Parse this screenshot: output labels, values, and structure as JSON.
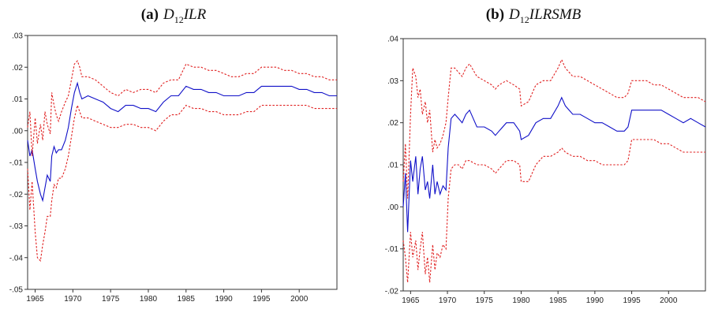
{
  "chart_data": [
    {
      "type": "line",
      "caption": {
        "tag": "(a)",
        "symbol": "D",
        "subscript": "12",
        "suffix": "ILR"
      },
      "ylim": [
        -0.05,
        0.03
      ],
      "yticks": [
        0.03,
        0.02,
        0.01,
        0.0,
        -0.01,
        -0.02,
        -0.03,
        -0.04,
        -0.05
      ],
      "ytick_labels": [
        ".03",
        ".02",
        ".01",
        ".00",
        "-.01",
        "-.02",
        "-.03",
        "-.04",
        "-.05"
      ],
      "xlim": [
        1964,
        2005
      ],
      "xticks": [
        1965,
        1970,
        1975,
        1980,
        1985,
        1990,
        1995,
        2000
      ],
      "xtick_labels": [
        "1965",
        "1970",
        "1975",
        "1980",
        "1985",
        "1990",
        "1995",
        "2000"
      ],
      "grid": false,
      "series": [
        {
          "color": "#1010c8",
          "style": "solid",
          "x": [
            1964.0,
            1964.3,
            1964.6,
            1965.0,
            1965.3,
            1965.7,
            1966.0,
            1966.3,
            1966.6,
            1967.0,
            1967.2,
            1967.5,
            1967.8,
            1968.1,
            1968.5,
            1969.0,
            1969.4,
            1969.8,
            1970.2,
            1970.6,
            1970.9,
            1971.2,
            1972.0,
            1973.0,
            1974.0,
            1975.0,
            1976.0,
            1977.0,
            1978.0,
            1979.0,
            1980.0,
            1981.0,
            1982.0,
            1983.0,
            1984.0,
            1985.0,
            1986.0,
            1987.0,
            1988.0,
            1989.0,
            1990.0,
            1991.0,
            1992.0,
            1993.0,
            1994.0,
            1995.0,
            1996.0,
            1997.0,
            1998.0,
            1999.0,
            2000.0,
            2001.0,
            2002.0,
            2003.0,
            2004.0,
            2005.0
          ],
          "y": [
            -0.003,
            -0.008,
            -0.006,
            -0.012,
            -0.016,
            -0.02,
            -0.022,
            -0.018,
            -0.014,
            -0.016,
            -0.008,
            -0.005,
            -0.007,
            -0.006,
            -0.006,
            -0.003,
            0.001,
            0.007,
            0.012,
            0.015,
            0.012,
            0.01,
            0.011,
            0.01,
            0.009,
            0.007,
            0.006,
            0.008,
            0.008,
            0.007,
            0.007,
            0.006,
            0.009,
            0.011,
            0.011,
            0.014,
            0.013,
            0.013,
            0.012,
            0.012,
            0.011,
            0.011,
            0.011,
            0.012,
            0.012,
            0.014,
            0.014,
            0.014,
            0.014,
            0.014,
            0.013,
            0.013,
            0.012,
            0.012,
            0.011,
            0.011
          ]
        },
        {
          "color": "#e02020",
          "style": "dashed",
          "x": [
            1964.0,
            1964.3,
            1964.6,
            1965.0,
            1965.3,
            1965.7,
            1966.0,
            1966.3,
            1966.6,
            1967.0,
            1967.2,
            1967.5,
            1967.8,
            1968.1,
            1968.5,
            1969.0,
            1969.4,
            1969.8,
            1970.2,
            1970.6,
            1970.9,
            1971.2,
            1972.0,
            1973.0,
            1974.0,
            1975.0,
            1976.0,
            1977.0,
            1978.0,
            1979.0,
            1980.0,
            1981.0,
            1982.0,
            1983.0,
            1984.0,
            1985.0,
            1986.0,
            1987.0,
            1988.0,
            1989.0,
            1990.0,
            1991.0,
            1992.0,
            1993.0,
            1994.0,
            1995.0,
            1996.0,
            1997.0,
            1998.0,
            1999.0,
            2000.0,
            2001.0,
            2002.0,
            2003.0,
            2004.0,
            2005.0
          ],
          "y": [
            0.001,
            0.006,
            -0.008,
            0.004,
            -0.004,
            0.002,
            -0.003,
            0.006,
            0.002,
            -0.001,
            0.012,
            0.008,
            0.005,
            0.003,
            0.006,
            0.009,
            0.011,
            0.016,
            0.021,
            0.022,
            0.02,
            0.017,
            0.017,
            0.016,
            0.014,
            0.012,
            0.011,
            0.013,
            0.012,
            0.013,
            0.013,
            0.012,
            0.015,
            0.016,
            0.016,
            0.021,
            0.02,
            0.02,
            0.019,
            0.019,
            0.018,
            0.017,
            0.017,
            0.018,
            0.018,
            0.02,
            0.02,
            0.02,
            0.019,
            0.019,
            0.018,
            0.018,
            0.017,
            0.017,
            0.016,
            0.016
          ]
        },
        {
          "color": "#e02020",
          "style": "dashed",
          "x": [
            1964.0,
            1964.3,
            1964.6,
            1965.0,
            1965.3,
            1965.7,
            1966.0,
            1966.3,
            1966.6,
            1967.0,
            1967.2,
            1967.5,
            1967.8,
            1968.1,
            1968.5,
            1969.0,
            1969.4,
            1969.8,
            1970.2,
            1970.6,
            1970.9,
            1971.2,
            1972.0,
            1973.0,
            1974.0,
            1975.0,
            1976.0,
            1977.0,
            1978.0,
            1979.0,
            1980.0,
            1981.0,
            1982.0,
            1983.0,
            1984.0,
            1985.0,
            1986.0,
            1987.0,
            1988.0,
            1989.0,
            1990.0,
            1991.0,
            1992.0,
            1993.0,
            1994.0,
            1995.0,
            1996.0,
            1997.0,
            1998.0,
            1999.0,
            2000.0,
            2001.0,
            2002.0,
            2003.0,
            2004.0,
            2005.0
          ],
          "y": [
            -0.012,
            -0.025,
            -0.016,
            -0.032,
            -0.04,
            -0.041,
            -0.036,
            -0.032,
            -0.027,
            -0.027,
            -0.022,
            -0.017,
            -0.018,
            -0.015,
            -0.015,
            -0.012,
            -0.008,
            -0.002,
            0.004,
            0.008,
            0.006,
            0.004,
            0.004,
            0.003,
            0.002,
            0.001,
            0.001,
            0.002,
            0.002,
            0.001,
            0.001,
            0.0,
            0.003,
            0.005,
            0.005,
            0.008,
            0.007,
            0.007,
            0.006,
            0.006,
            0.005,
            0.005,
            0.005,
            0.006,
            0.006,
            0.008,
            0.008,
            0.008,
            0.008,
            0.008,
            0.008,
            0.008,
            0.007,
            0.007,
            0.007,
            0.007
          ]
        }
      ]
    },
    {
      "type": "line",
      "caption": {
        "tag": "(b)",
        "symbol": "D",
        "subscript": "12",
        "suffix": "ILRSMB"
      },
      "ylim": [
        -0.02,
        0.04
      ],
      "yticks": [
        0.04,
        0.03,
        0.02,
        0.01,
        0.0,
        -0.01,
        -0.02
      ],
      "ytick_labels": [
        ".04",
        ".03",
        ".02",
        ".01",
        ".00",
        "-.01",
        "-.02"
      ],
      "xlim": [
        1964,
        2005
      ],
      "xticks": [
        1965,
        1970,
        1975,
        1980,
        1985,
        1990,
        1995,
        2000
      ],
      "xtick_labels": [
        "1965",
        "1970",
        "1975",
        "1980",
        "1985",
        "1990",
        "1995",
        "2000"
      ],
      "grid": false,
      "series": [
        {
          "color": "#1010c8",
          "style": "solid",
          "x": [
            1964.0,
            1964.3,
            1964.6,
            1965.0,
            1965.3,
            1965.7,
            1966.0,
            1966.3,
            1966.6,
            1967.0,
            1967.3,
            1967.6,
            1968.0,
            1968.3,
            1968.6,
            1969.0,
            1969.4,
            1969.8,
            1970.1,
            1970.5,
            1971.0,
            1971.5,
            1972.0,
            1972.5,
            1973.0,
            1974.0,
            1975.0,
            1976.0,
            1976.5,
            1977.0,
            1978.0,
            1979.0,
            1979.8,
            1980.0,
            1981.0,
            1982.0,
            1983.0,
            1984.0,
            1985.0,
            1985.5,
            1986.0,
            1987.0,
            1988.0,
            1989.0,
            1990.0,
            1991.0,
            1992.0,
            1993.0,
            1994.0,
            1994.5,
            1995.0,
            1996.0,
            1997.0,
            1998.0,
            1999.0,
            2000.0,
            2001.0,
            2002.0,
            2003.0,
            2004.0,
            2005.0
          ],
          "y": [
            0.0,
            0.008,
            -0.006,
            0.011,
            0.006,
            0.012,
            0.003,
            0.009,
            0.012,
            0.004,
            0.006,
            0.002,
            0.01,
            0.003,
            0.006,
            0.003,
            0.005,
            0.004,
            0.014,
            0.021,
            0.022,
            0.021,
            0.02,
            0.022,
            0.023,
            0.019,
            0.019,
            0.018,
            0.017,
            0.018,
            0.02,
            0.02,
            0.018,
            0.016,
            0.017,
            0.02,
            0.021,
            0.021,
            0.024,
            0.026,
            0.024,
            0.022,
            0.022,
            0.021,
            0.02,
            0.02,
            0.019,
            0.018,
            0.018,
            0.019,
            0.023,
            0.023,
            0.023,
            0.023,
            0.023,
            0.022,
            0.021,
            0.02,
            0.021,
            0.02,
            0.019
          ]
        },
        {
          "color": "#e02020",
          "style": "dashed",
          "x": [
            1964.0,
            1964.3,
            1964.6,
            1965.0,
            1965.3,
            1965.7,
            1966.0,
            1966.3,
            1966.6,
            1967.0,
            1967.3,
            1967.6,
            1968.0,
            1968.3,
            1968.6,
            1969.0,
            1969.4,
            1969.8,
            1970.1,
            1970.5,
            1971.0,
            1971.5,
            1972.0,
            1972.5,
            1973.0,
            1974.0,
            1975.0,
            1976.0,
            1976.5,
            1977.0,
            1978.0,
            1979.0,
            1979.8,
            1980.0,
            1981.0,
            1982.0,
            1983.0,
            1984.0,
            1985.0,
            1985.5,
            1986.0,
            1987.0,
            1988.0,
            1989.0,
            1990.0,
            1991.0,
            1992.0,
            1993.0,
            1994.0,
            1994.5,
            1995.0,
            1996.0,
            1997.0,
            1998.0,
            1999.0,
            2000.0,
            2001.0,
            2002.0,
            2003.0,
            2004.0,
            2005.0
          ],
          "y": [
            0.006,
            0.015,
            0.002,
            0.022,
            0.033,
            0.031,
            0.026,
            0.028,
            0.022,
            0.025,
            0.02,
            0.023,
            0.013,
            0.016,
            0.014,
            0.015,
            0.017,
            0.02,
            0.026,
            0.033,
            0.033,
            0.032,
            0.031,
            0.033,
            0.034,
            0.031,
            0.03,
            0.029,
            0.028,
            0.029,
            0.03,
            0.029,
            0.028,
            0.024,
            0.025,
            0.029,
            0.03,
            0.03,
            0.033,
            0.035,
            0.033,
            0.031,
            0.031,
            0.03,
            0.029,
            0.028,
            0.027,
            0.026,
            0.026,
            0.027,
            0.03,
            0.03,
            0.03,
            0.029,
            0.029,
            0.028,
            0.027,
            0.026,
            0.026,
            0.026,
            0.025
          ]
        },
        {
          "color": "#e02020",
          "style": "dashed",
          "x": [
            1964.0,
            1964.3,
            1964.6,
            1965.0,
            1965.3,
            1965.7,
            1966.0,
            1966.3,
            1966.6,
            1967.0,
            1967.3,
            1967.6,
            1968.0,
            1968.3,
            1968.6,
            1969.0,
            1969.4,
            1969.8,
            1970.1,
            1970.5,
            1971.0,
            1971.5,
            1972.0,
            1972.5,
            1973.0,
            1974.0,
            1975.0,
            1976.0,
            1976.5,
            1977.0,
            1978.0,
            1979.0,
            1979.8,
            1980.0,
            1981.0,
            1982.0,
            1983.0,
            1984.0,
            1985.0,
            1985.5,
            1986.0,
            1987.0,
            1988.0,
            1989.0,
            1990.0,
            1991.0,
            1992.0,
            1993.0,
            1994.0,
            1994.5,
            1995.0,
            1996.0,
            1997.0,
            1998.0,
            1999.0,
            2000.0,
            2001.0,
            2002.0,
            2003.0,
            2004.0,
            2005.0
          ],
          "y": [
            -0.008,
            -0.012,
            -0.018,
            -0.006,
            -0.012,
            -0.008,
            -0.015,
            -0.01,
            -0.006,
            -0.016,
            -0.012,
            -0.018,
            -0.009,
            -0.015,
            -0.011,
            -0.012,
            -0.009,
            -0.01,
            0.002,
            0.009,
            0.01,
            0.01,
            0.009,
            0.011,
            0.011,
            0.01,
            0.01,
            0.009,
            0.008,
            0.009,
            0.011,
            0.011,
            0.01,
            0.006,
            0.006,
            0.01,
            0.012,
            0.012,
            0.013,
            0.014,
            0.013,
            0.012,
            0.012,
            0.011,
            0.011,
            0.01,
            0.01,
            0.01,
            0.01,
            0.011,
            0.016,
            0.016,
            0.016,
            0.016,
            0.015,
            0.015,
            0.014,
            0.013,
            0.013,
            0.013,
            0.013
          ]
        }
      ]
    }
  ]
}
